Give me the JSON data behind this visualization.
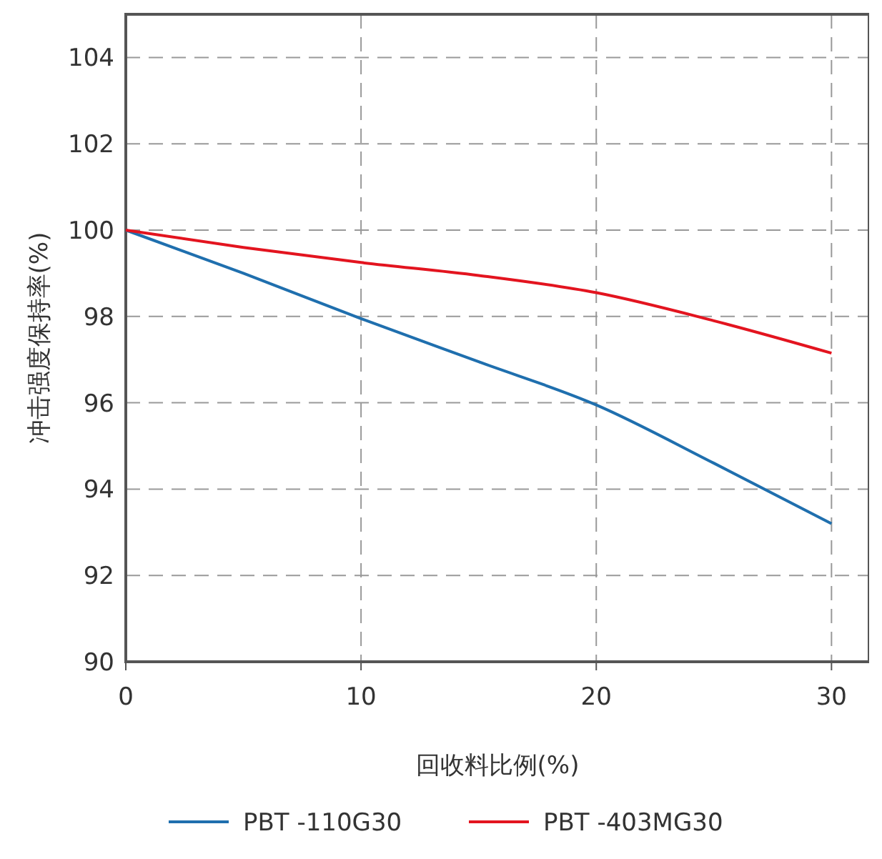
{
  "chart_data": {
    "type": "line",
    "xlabel": "回收料比例(%)",
    "ylabel": "冲击强度保持率(%)",
    "x": [
      0,
      5,
      10,
      15,
      20,
      25,
      30
    ],
    "xlim": [
      0,
      31.6
    ],
    "xticks": [
      0,
      10,
      20,
      30
    ],
    "ylim": [
      90,
      105
    ],
    "yticks": [
      90,
      92,
      94,
      96,
      98,
      100,
      102,
      104
    ],
    "grid": true,
    "legend": "bottom",
    "marker": "none",
    "line_style": "solid",
    "series": [
      {
        "name": "PBT -110G30",
        "color": "#1f6fae",
        "values": [
          100,
          99,
          97.95,
          96.95,
          95.95,
          94.6,
          93.2
        ]
      },
      {
        "name": "PBT -403MG30",
        "color": "#e3141f",
        "values": [
          100,
          99.6,
          99.25,
          98.95,
          98.55,
          97.9,
          97.15
        ]
      }
    ]
  }
}
